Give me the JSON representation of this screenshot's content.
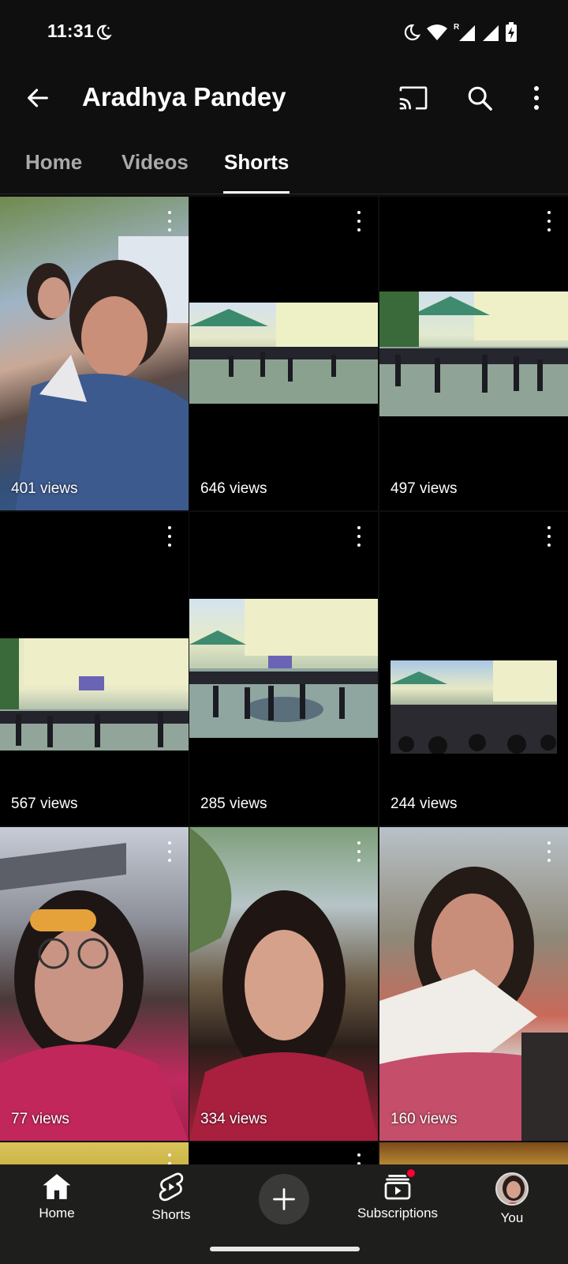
{
  "status_bar": {
    "time": "11:31"
  },
  "header": {
    "channel_name": "Aradhya Pandey"
  },
  "tabs": [
    {
      "label": "Home",
      "active": false
    },
    {
      "label": "Videos",
      "active": false
    },
    {
      "label": "Shorts",
      "active": true
    }
  ],
  "shorts": [
    {
      "views": "401 views"
    },
    {
      "views": "646 views"
    },
    {
      "views": "497 views"
    },
    {
      "views": "567 views"
    },
    {
      "views": "285 views"
    },
    {
      "views": "244 views"
    },
    {
      "views": "77 views"
    },
    {
      "views": "334 views"
    },
    {
      "views": "160 views"
    }
  ],
  "bottom_nav": {
    "home": "Home",
    "shorts": "Shorts",
    "subscriptions": "Subscriptions",
    "you": "You"
  },
  "colors": {
    "background": "#0f0f0f",
    "nav_background": "#1e1e1c",
    "notification": "#ff0033"
  }
}
